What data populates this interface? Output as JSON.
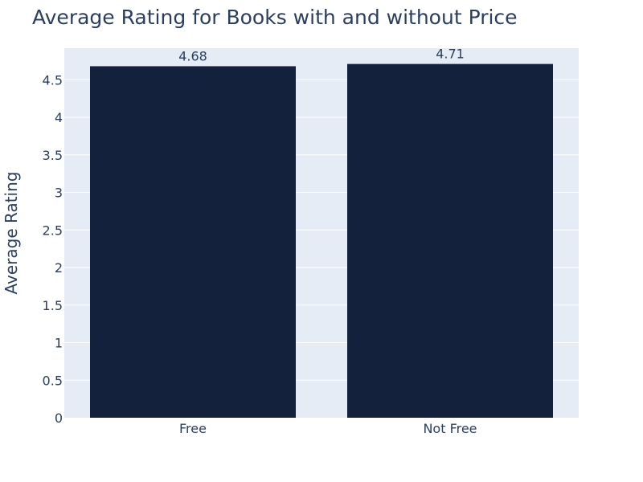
{
  "chart_data": {
    "type": "bar",
    "title": "Average Rating for Books with and without Price",
    "xlabel": "",
    "ylabel": "Average Rating",
    "categories": [
      "Free",
      "Not Free"
    ],
    "values": [
      4.68,
      4.71
    ],
    "data_labels": [
      "4.68",
      "4.71"
    ],
    "ylim": [
      0,
      4.92
    ],
    "yticks": [
      0,
      0.5,
      1,
      1.5,
      2,
      2.5,
      3,
      3.5,
      4,
      4.5
    ],
    "ytick_labels": [
      "0",
      "0.5",
      "1",
      "1.5",
      "2",
      "2.5",
      "3",
      "3.5",
      "4",
      "4.5"
    ],
    "grid": true,
    "legend": "none",
    "colors": {
      "bar": "#14213d",
      "plot_bg": "#e5ecf6",
      "grid": "#ffffff",
      "text": "#2a3f5f"
    }
  }
}
